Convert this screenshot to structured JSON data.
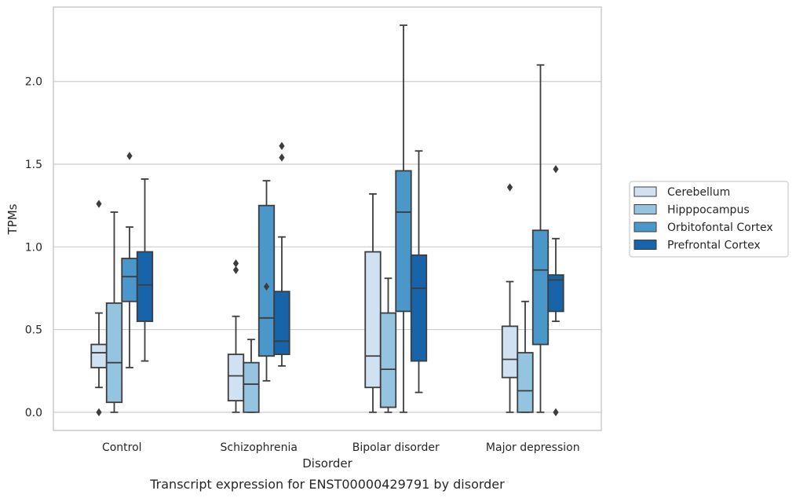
{
  "chart_data": {
    "type": "box",
    "xlabel": "Disorder",
    "ylabel": "TPMs",
    "caption": "Transcript expression for ENST00000429791 by disorder",
    "ylim": [
      -0.11,
      2.45
    ],
    "yticks": [
      "0.0",
      "0.5",
      "1.0",
      "1.5",
      "2.0"
    ],
    "grid": "horizontal",
    "legend_position": "right",
    "categories": [
      "Control",
      "Schizophrenia",
      "Bipolar disorder",
      "Major depression"
    ],
    "series": [
      {
        "name": "Cerebellum",
        "color": "#d0e1f2",
        "boxes": [
          {
            "whisker_low": 0.15,
            "q1": 0.27,
            "median": 0.36,
            "q3": 0.41,
            "whisker_high": 0.6,
            "outliers": [
              1.26,
              0.0
            ]
          },
          {
            "whisker_low": 0.0,
            "q1": 0.07,
            "median": 0.22,
            "q3": 0.35,
            "whisker_high": 0.58,
            "outliers": [
              0.9,
              0.86
            ]
          },
          {
            "whisker_low": 0.0,
            "q1": 0.15,
            "median": 0.34,
            "q3": 0.97,
            "whisker_high": 1.32,
            "outliers": []
          },
          {
            "whisker_low": 0.0,
            "q1": 0.21,
            "median": 0.32,
            "q3": 0.52,
            "whisker_high": 0.79,
            "outliers": [
              1.36
            ]
          }
        ]
      },
      {
        "name": "Hipppocampus",
        "color": "#94c4df",
        "boxes": [
          {
            "whisker_low": 0.0,
            "q1": 0.06,
            "median": 0.3,
            "q3": 0.66,
            "whisker_high": 1.21,
            "outliers": []
          },
          {
            "whisker_low": 0.0,
            "q1": 0.0,
            "median": 0.17,
            "q3": 0.3,
            "whisker_high": 0.44,
            "outliers": []
          },
          {
            "whisker_low": 0.0,
            "q1": 0.03,
            "median": 0.26,
            "q3": 0.6,
            "whisker_high": 0.81,
            "outliers": []
          },
          {
            "whisker_low": 0.0,
            "q1": 0.0,
            "median": 0.13,
            "q3": 0.36,
            "whisker_high": 0.67,
            "outliers": []
          }
        ]
      },
      {
        "name": "Orbitofontal Cortex",
        "color": "#4a98c9",
        "boxes": [
          {
            "whisker_low": 0.27,
            "q1": 0.67,
            "median": 0.82,
            "q3": 0.93,
            "whisker_high": 1.12,
            "outliers": [
              1.55
            ]
          },
          {
            "whisker_low": 0.19,
            "q1": 0.34,
            "median": 0.57,
            "q3": 1.25,
            "whisker_high": 1.4,
            "outliers": [
              0.76
            ]
          },
          {
            "whisker_low": 0.0,
            "q1": 0.61,
            "median": 1.21,
            "q3": 1.46,
            "whisker_high": 2.34,
            "outliers": []
          },
          {
            "whisker_low": 0.0,
            "q1": 0.41,
            "median": 0.86,
            "q3": 1.1,
            "whisker_high": 2.1,
            "outliers": []
          }
        ]
      },
      {
        "name": "Prefrontal Cortex",
        "color": "#1764ab",
        "boxes": [
          {
            "whisker_low": 0.31,
            "q1": 0.55,
            "median": 0.77,
            "q3": 0.97,
            "whisker_high": 1.41,
            "outliers": []
          },
          {
            "whisker_low": 0.28,
            "q1": 0.35,
            "median": 0.43,
            "q3": 0.73,
            "whisker_high": 1.06,
            "outliers": [
              1.61,
              1.54
            ]
          },
          {
            "whisker_low": 0.12,
            "q1": 0.31,
            "median": 0.75,
            "q3": 0.95,
            "whisker_high": 1.58,
            "outliers": []
          },
          {
            "whisker_low": 0.55,
            "q1": 0.61,
            "median": 0.8,
            "q3": 0.83,
            "whisker_high": 1.05,
            "outliers": [
              1.47,
              0.0
            ]
          }
        ]
      }
    ]
  }
}
